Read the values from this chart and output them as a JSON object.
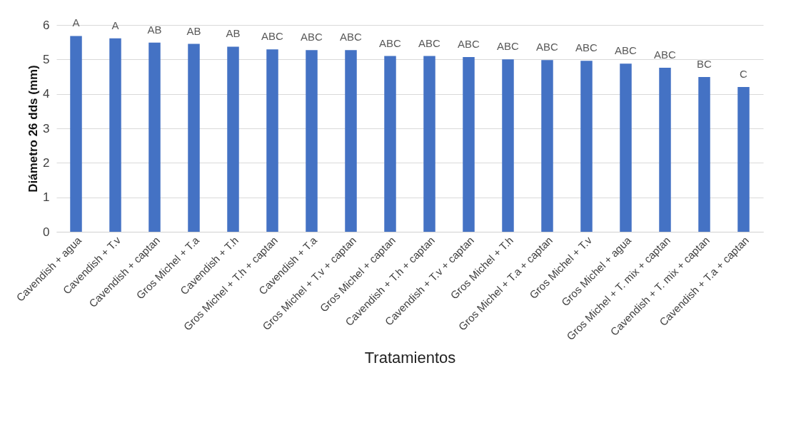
{
  "chart_data": {
    "type": "bar",
    "xlabel": "Tratamientos",
    "ylabel": "Diámetro 26 dds (mm)",
    "categories": [
      "Cavendish + agua",
      "Cavendish + T.v",
      "Cavendish + captan",
      "Gros Michel + T.a",
      "Cavendish + T.h",
      "Gros Michel + T.h + captan",
      "Cavendish + T.a",
      "Gros Michel + T.v + captan",
      "Gros Michel + captan",
      "Cavendish + T.h + captan",
      "Cavendish + T.v + captan",
      "Gros Michel + T.h",
      "Gros Michel + T.a + captan",
      "Gros Michel + T.v",
      "Gros Michel + agua",
      "Gros Michel + T. mix + captan",
      "Cavendish + T. mix + captan",
      "Cavendish + T.a + captan"
    ],
    "values": [
      5.68,
      5.61,
      5.49,
      5.45,
      5.37,
      5.29,
      5.27,
      5.27,
      5.1,
      5.1,
      5.07,
      5.0,
      4.98,
      4.96,
      4.88,
      4.76,
      4.49,
      4.2
    ],
    "value_labels": [
      "A",
      "A",
      "AB",
      "AB",
      "AB",
      "ABC",
      "ABC",
      "ABC",
      "ABC",
      "ABC",
      "ABC",
      "ABC",
      "ABC",
      "ABC",
      "ABC",
      "ABC",
      "BC",
      "C"
    ],
    "color": "#4472c4",
    "ylim": [
      0,
      6
    ],
    "yticks": [
      0,
      1,
      2,
      3,
      4,
      5,
      6
    ],
    "grid": "y"
  }
}
